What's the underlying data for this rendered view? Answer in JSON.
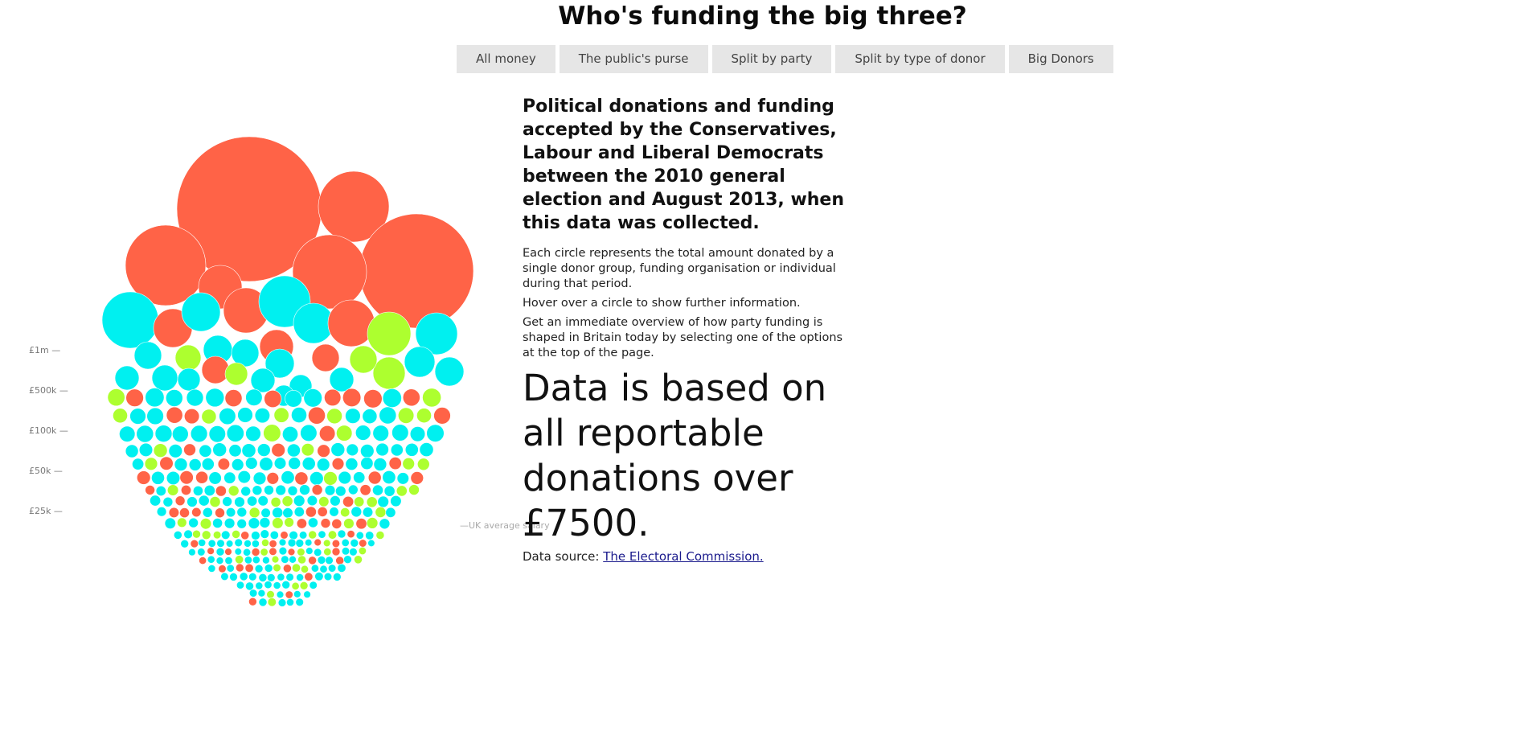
{
  "page": {
    "title": "Who's funding the big three?"
  },
  "nav": {
    "buttons": [
      "All money",
      "The public's purse",
      "Split by party",
      "Split by type of donor",
      "Big Donors"
    ]
  },
  "chart_data": {
    "type": "bubble",
    "title": "",
    "y_ticks": [
      "£1m —",
      "£500k —",
      "£100k —",
      "£50k —",
      "£25k —"
    ],
    "annotation": "—UK average salary",
    "colors": {
      "party_a": "#ff6347",
      "party_b": "#00f0f0",
      "party_c": "#adff2f"
    }
  },
  "panel": {
    "heading": "Political donations and funding accepted by the Conservatives, Labour and Liberal Democrats between the 2010 general election and August 2013, when this data was collected.",
    "p1": "Each circle represents the total amount donated by a single donor group, funding organisation or individual during that period.",
    "p2": "Hover over a circle to show further information.",
    "p3": "Get an immediate overview of how party funding is shaped in Britain today by selecting one of the options at the top of the page.",
    "big_text": "Data is based on all reportable donations over £7500.",
    "source_prefix": "Data source: ",
    "source_link": "The Electoral Commission."
  }
}
